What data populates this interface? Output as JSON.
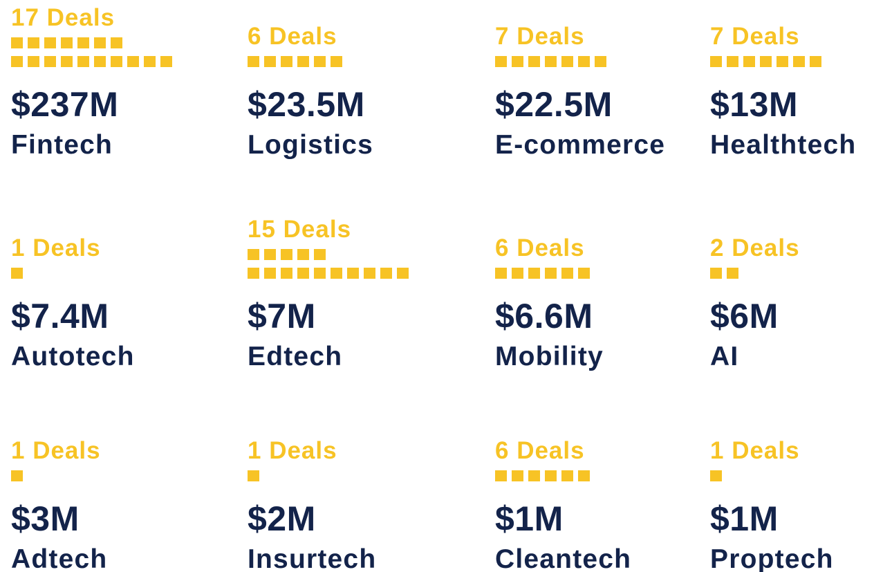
{
  "chart_data": {
    "type": "unit",
    "categories": [
      "Fintech",
      "Logistics",
      "E-commerce",
      "Healthtech",
      "Autotech",
      "Edtech",
      "Mobility",
      "AI",
      "Adtech",
      "Insurtech",
      "Cleantech",
      "Proptech"
    ],
    "values": [
      237,
      23.5,
      22.5,
      13,
      7.4,
      7,
      6.6,
      6,
      3,
      2,
      1,
      1
    ],
    "value_labels": [
      "$237M",
      "$23.5M",
      "$22.5M",
      "$13M",
      "$7.4M",
      "$7M",
      "$6.6M",
      "$6M",
      "$3M",
      "$2M",
      "$1M",
      "$1M"
    ],
    "deals": [
      17,
      6,
      7,
      7,
      1,
      15,
      6,
      2,
      1,
      1,
      6,
      1
    ],
    "deals_labels": [
      "17 Deals",
      "6 Deals",
      "7 Deals",
      "7 Deals",
      "1 Deals",
      "15 Deals",
      "6 Deals",
      "2 Deals",
      "1 Deals",
      "1 Deals",
      "6 Deals",
      "1 Deals"
    ],
    "color": "#f7c325"
  }
}
